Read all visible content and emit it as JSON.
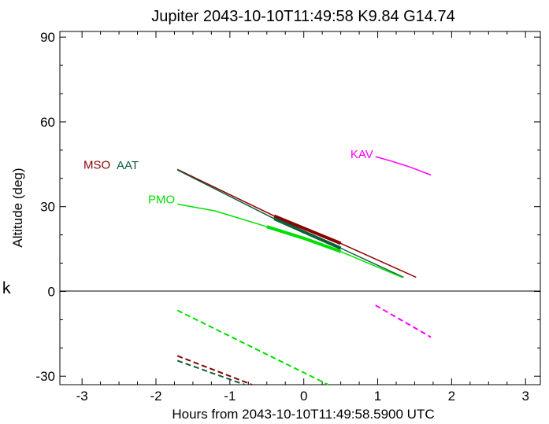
{
  "chart_data": {
    "type": "line",
    "title": "Jupiter 2043-10-10T11:49:58  K9.84  G14.74",
    "xlabel": "Hours from 2043-10-10T11:49:58.5900 UTC",
    "ylabel": "Altitude (deg)",
    "xlim": [
      -3.3,
      3.2
    ],
    "ylim": [
      -33,
      92
    ],
    "xticks": [
      -3,
      -2,
      -1,
      0,
      1,
      2,
      3
    ],
    "xtick_labels": [
      "-3",
      "-2",
      "-1",
      "0",
      "1",
      "2",
      "3"
    ],
    "yticks": [
      -30,
      0,
      30,
      60,
      90
    ],
    "ytick_labels": [
      "-30",
      "0",
      "30",
      "60",
      "90"
    ],
    "zero_line": true,
    "grid": false,
    "series": [
      {
        "name": "MSO",
        "color": "#8b0000",
        "x": [
          -1.71,
          -0.4,
          0.5,
          1.52
        ],
        "y": [
          43.2,
          26.7,
          17.0,
          5.0
        ],
        "bold_segment": [
          -0.4,
          0.5
        ],
        "neg_x": [
          -1.71,
          -0.7
        ],
        "neg_y": [
          -22.8,
          -33.0
        ]
      },
      {
        "name": "AAT",
        "color": "#0e5e3a",
        "x": [
          -1.71,
          -0.4,
          0.5,
          1.35
        ],
        "y": [
          43.0,
          25.7,
          15.3,
          5.0
        ],
        "bold_segment": [
          -0.4,
          0.5
        ],
        "neg_x": [
          -1.71,
          -0.8
        ],
        "neg_y": [
          -24.5,
          -33.0
        ]
      },
      {
        "name": "PMO",
        "color": "#00e000",
        "x": [
          -1.71,
          -1.2,
          -0.5,
          0.0,
          0.5,
          1.0,
          1.33
        ],
        "y": [
          30.9,
          28.5,
          22.9,
          18.8,
          14.1,
          8.6,
          5.0
        ],
        "bold_segment": [
          -0.5,
          0.5
        ],
        "neg_x": [
          -1.71,
          0.33
        ],
        "neg_y": [
          -6.7,
          -33.0
        ]
      },
      {
        "name": "KAV",
        "color": "#ff00ff",
        "x": [
          0.97,
          1.2,
          1.45,
          1.72
        ],
        "y": [
          47.7,
          46.0,
          43.9,
          41.2
        ],
        "bold_segment": null,
        "neg_x": [
          0.97,
          1.72
        ],
        "neg_y": [
          -4.9,
          -16.2
        ]
      }
    ]
  },
  "stray_char": "k"
}
